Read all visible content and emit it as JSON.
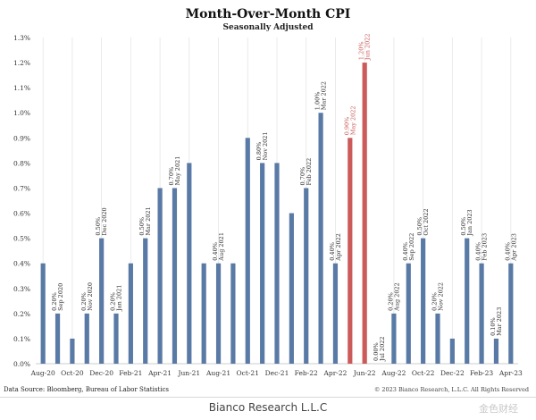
{
  "chart_data": {
    "type": "bar",
    "title": "Month-Over-Month CPI",
    "subtitle": "Seasonally Adjusted",
    "ylim": [
      0,
      1.3
    ],
    "yticks": [
      "0.0%",
      "0.1%",
      "0.2%",
      "0.3%",
      "0.4%",
      "0.5%",
      "0.6%",
      "0.7%",
      "0.8%",
      "0.9%",
      "1.0%",
      "1.1%",
      "1.2%",
      "1.3%"
    ],
    "x_tick_labels": [
      "Aug-20",
      "Oct-20",
      "Dec-20",
      "Feb-21",
      "Apr-21",
      "Jun-21",
      "Aug-21",
      "Oct-21",
      "Dec-21",
      "Feb-22",
      "Apr-22",
      "Jun-22",
      "Aug-22",
      "Oct-22",
      "Dec-22",
      "Feb-23",
      "Apr-23"
    ],
    "grid": "vertical",
    "colors": {
      "normal": "#5a7aa6",
      "highlight": "#cc5a5a",
      "grid": "#e6e6e6",
      "highlight_label": "#cc5a5a"
    },
    "categories": [
      "Aug-20",
      "Sep-20",
      "Oct-20",
      "Nov-20",
      "Dec-20",
      "Jan-21",
      "Feb-21",
      "Mar-21",
      "Apr-21",
      "May-21",
      "Jun-21",
      "Jul-21",
      "Aug-21",
      "Sep-21",
      "Oct-21",
      "Nov-21",
      "Dec-21",
      "Jan-22",
      "Feb-22",
      "Mar-22",
      "Apr-22",
      "May-22",
      "Jun-22",
      "Jul-22",
      "Aug-22",
      "Sep-22",
      "Oct-22",
      "Nov-22",
      "Dec-22",
      "Jan-23",
      "Feb-23",
      "Mar-23",
      "Apr-23"
    ],
    "values": [
      0.4,
      0.2,
      0.1,
      0.2,
      0.5,
      0.2,
      0.4,
      0.5,
      0.7,
      0.7,
      0.8,
      0.4,
      0.4,
      0.4,
      0.9,
      0.8,
      0.8,
      0.6,
      0.7,
      1.0,
      0.4,
      0.9,
      1.2,
      0.0,
      0.2,
      0.4,
      0.5,
      0.2,
      0.1,
      0.5,
      0.4,
      0.1,
      0.4
    ],
    "highlight": [
      false,
      false,
      false,
      false,
      false,
      false,
      false,
      false,
      false,
      false,
      false,
      false,
      false,
      false,
      false,
      false,
      false,
      false,
      false,
      false,
      false,
      true,
      true,
      false,
      false,
      false,
      false,
      false,
      false,
      false,
      false,
      false,
      false
    ],
    "annotations": [
      {
        "index": 1,
        "value": "0.20%",
        "date": "Sep 2020"
      },
      {
        "index": 3,
        "value": "0.20%",
        "date": "Nov 2020"
      },
      {
        "index": 4,
        "value": "0.50%",
        "date": "Dec 2020"
      },
      {
        "index": 5,
        "value": "0.20%",
        "date": "Jan 2021"
      },
      {
        "index": 7,
        "value": "0.50%",
        "date": "Mar 2021"
      },
      {
        "index": 9,
        "value": "0.70%",
        "date": "May 2021"
      },
      {
        "index": 12,
        "value": "0.40%",
        "date": "Aug 2021"
      },
      {
        "index": 15,
        "value": "0.80%",
        "date": "Nov 2021"
      },
      {
        "index": 18,
        "value": "0.70%",
        "date": "Feb 2022"
      },
      {
        "index": 19,
        "value": "1.00%",
        "date": "Mar 2022"
      },
      {
        "index": 20,
        "value": "0.40%",
        "date": "Apr 2022"
      },
      {
        "index": 21,
        "value": "0.90%",
        "date": "May 2022"
      },
      {
        "index": 22,
        "value": "1.20%",
        "date": "Jun 2022"
      },
      {
        "index": 23,
        "value": "0.00%",
        "date": "Jul 2022"
      },
      {
        "index": 24,
        "value": "0.20%",
        "date": "Aug 2022"
      },
      {
        "index": 25,
        "value": "0.40%",
        "date": "Sep 2022"
      },
      {
        "index": 26,
        "value": "0.50%",
        "date": "Oct 2022"
      },
      {
        "index": 27,
        "value": "0.20%",
        "date": "Nov 2022"
      },
      {
        "index": 29,
        "value": "0.50%",
        "date": "Jan 2023"
      },
      {
        "index": 30,
        "value": "0.40%",
        "date": "Feb 2023"
      },
      {
        "index": 31,
        "value": "0.10%",
        "date": "Mar 2023"
      },
      {
        "index": 32,
        "value": "0.40%",
        "date": "Apr 2023"
      }
    ]
  },
  "footer": {
    "source": "Data Source: Bloomberg, Bureau of Labor Statistics",
    "copyright": "© 2023 Bianco Research, L.L.C. All Rights Reserved",
    "brand": "Bianco Research L.L.C",
    "watermark": "金色财经"
  }
}
